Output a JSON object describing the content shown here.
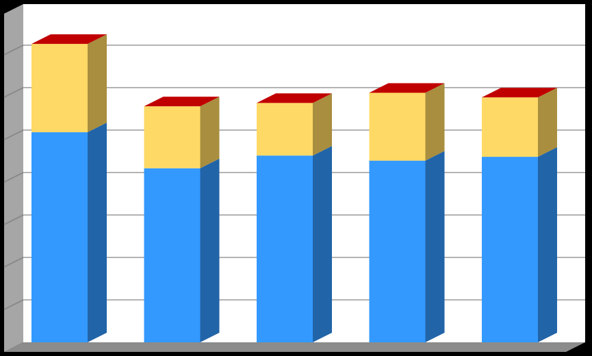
{
  "chart_data": {
    "type": "bar",
    "stacked": true,
    "three_d": true,
    "categories": [
      "",
      "",
      "",
      "",
      ""
    ],
    "series": [
      {
        "color": "#3399FF",
        "side_color": "#2264A8",
        "values": [
          4.95,
          4.1,
          4.4,
          4.28,
          4.37
        ]
      },
      {
        "color": "#FFD966",
        "side_color": "#A88E3E",
        "values": [
          2.08,
          1.46,
          1.24,
          1.6,
          1.4
        ]
      },
      {
        "color": "#C00000",
        "side_color": "#800000",
        "values": [
          0,
          0,
          0,
          0,
          0
        ]
      }
    ],
    "ylim": [
      0,
      8
    ],
    "grid": true,
    "legend": "none",
    "title": "",
    "xlabel": "",
    "ylabel": ""
  }
}
